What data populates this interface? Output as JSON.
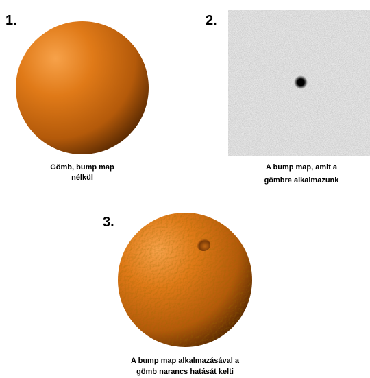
{
  "panels": [
    {
      "number": "1.",
      "caption": [
        "Gömb, bump map",
        "nélkül"
      ]
    },
    {
      "number": "2.",
      "caption": [
        "A bump map, amit a",
        "gömbre alkalmazunk"
      ]
    },
    {
      "number": "3.",
      "caption": [
        "A bump map alkalmazásával a",
        "gömb narancs hatását kelti"
      ]
    }
  ]
}
